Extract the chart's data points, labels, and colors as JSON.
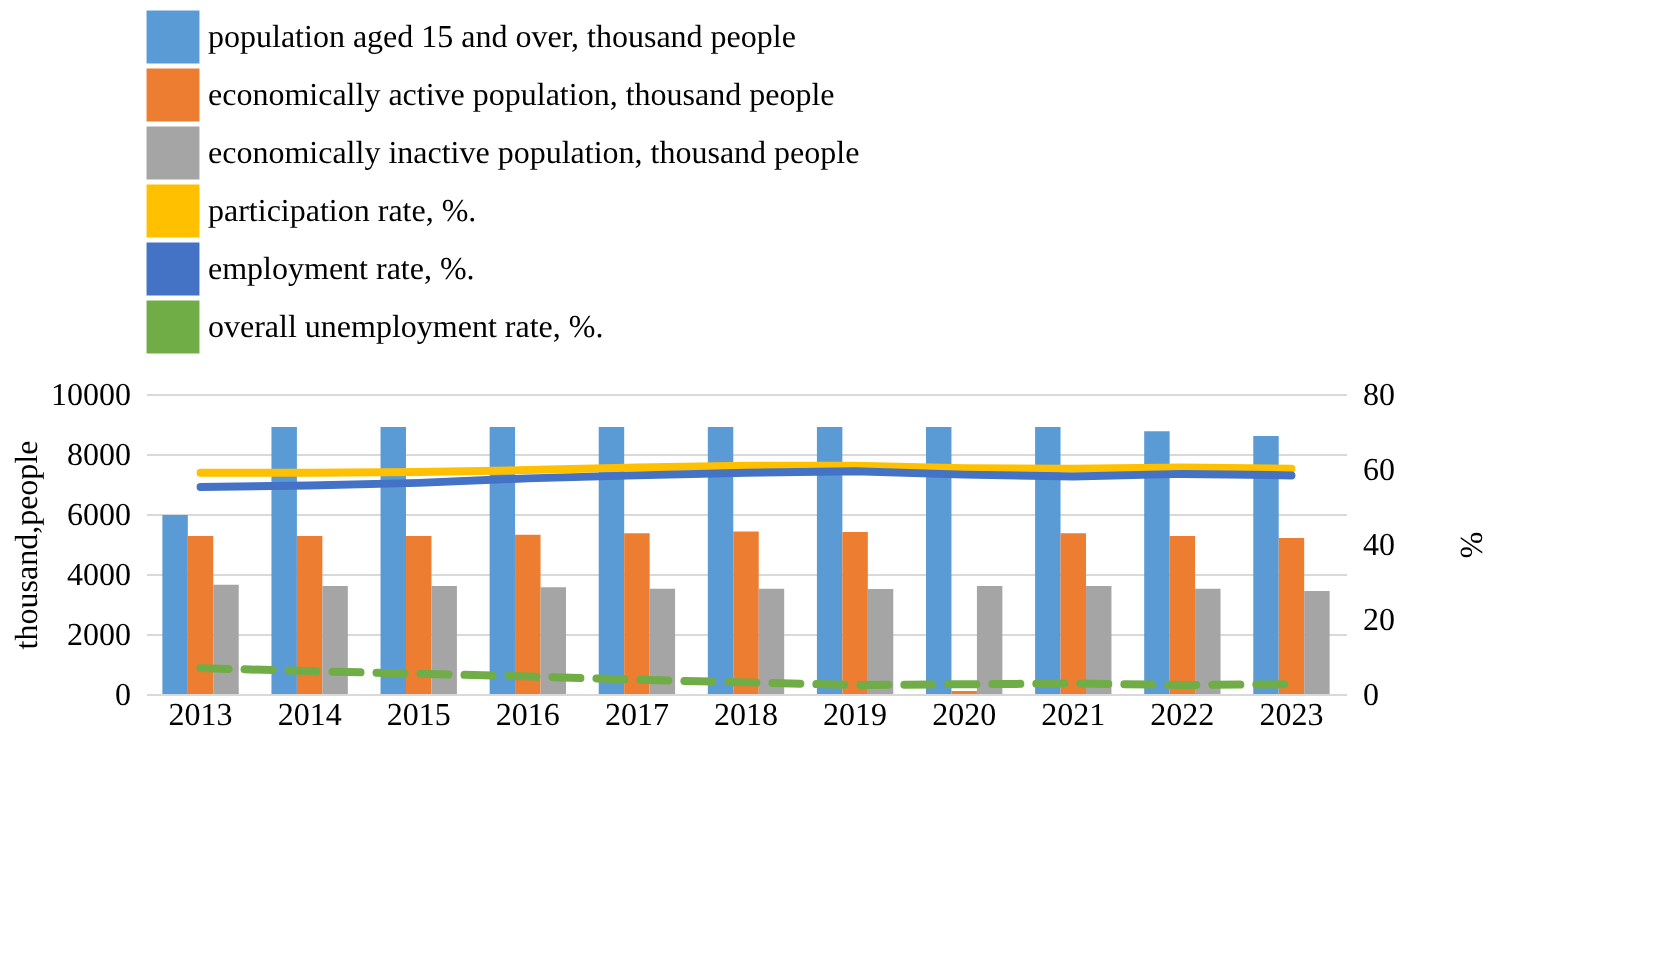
{
  "chart_data": {
    "type": "bar",
    "categories": [
      "2013",
      "2014",
      "2015",
      "2016",
      "2017",
      "2018",
      "2019",
      "2020",
      "2021",
      "2022",
      "2023"
    ],
    "series": [
      {
        "name": "population aged 15 and over, thousand people",
        "color": "#5b9bd5",
        "values": [
          5970,
          8900,
          8900,
          8900,
          8900,
          8900,
          8900,
          8900,
          8900,
          8760,
          8600
        ]
      },
      {
        "name": "economically active population, thousand people",
        "color": "#ed7d31",
        "values": [
          5270,
          5270,
          5270,
          5310,
          5360,
          5420,
          5400,
          100,
          5360,
          5270,
          5200
        ]
      },
      {
        "name": "economically inactive population, thousand people",
        "color": "#a5a5a5",
        "values": [
          3640,
          3600,
          3600,
          3560,
          3510,
          3510,
          3500,
          3600,
          3600,
          3510,
          3430
        ]
      },
      {
        "name": "participation rate, %.",
        "color": "#ffc000",
        "type": "line",
        "axis": "y2",
        "line_style": "solid",
        "values": [
          59.0,
          59.0,
          59.2,
          59.7,
          60.4,
          60.9,
          60.9,
          60.2,
          60.1,
          60.4,
          60.1
        ]
      },
      {
        "name": "employment rate, %.",
        "color": "#4472c4",
        "type": "line",
        "axis": "y2",
        "line_style": "solid",
        "values": [
          55.2,
          55.6,
          56.3,
          57.5,
          58.3,
          59.0,
          59.4,
          58.5,
          58.0,
          58.7,
          58.3
        ]
      },
      {
        "name": "overall unemployment rate, %.",
        "color": "#70ad47",
        "type": "line",
        "axis": "y2",
        "line_style": "dashed",
        "values": [
          6.9,
          6.1,
          5.4,
          4.7,
          3.8,
          3.1,
          2.4,
          2.6,
          2.8,
          2.4,
          2.6
        ]
      }
    ],
    "ylabel": "thousand,people",
    "y2label": "%",
    "ylim": [
      0,
      10000
    ],
    "yticks": [
      0,
      2000,
      4000,
      6000,
      8000,
      10000
    ],
    "y2lim": [
      0,
      80
    ],
    "y2ticks": [
      0,
      20,
      40,
      60,
      80
    ],
    "grid": "y",
    "legend": "top",
    "marker": "none"
  }
}
